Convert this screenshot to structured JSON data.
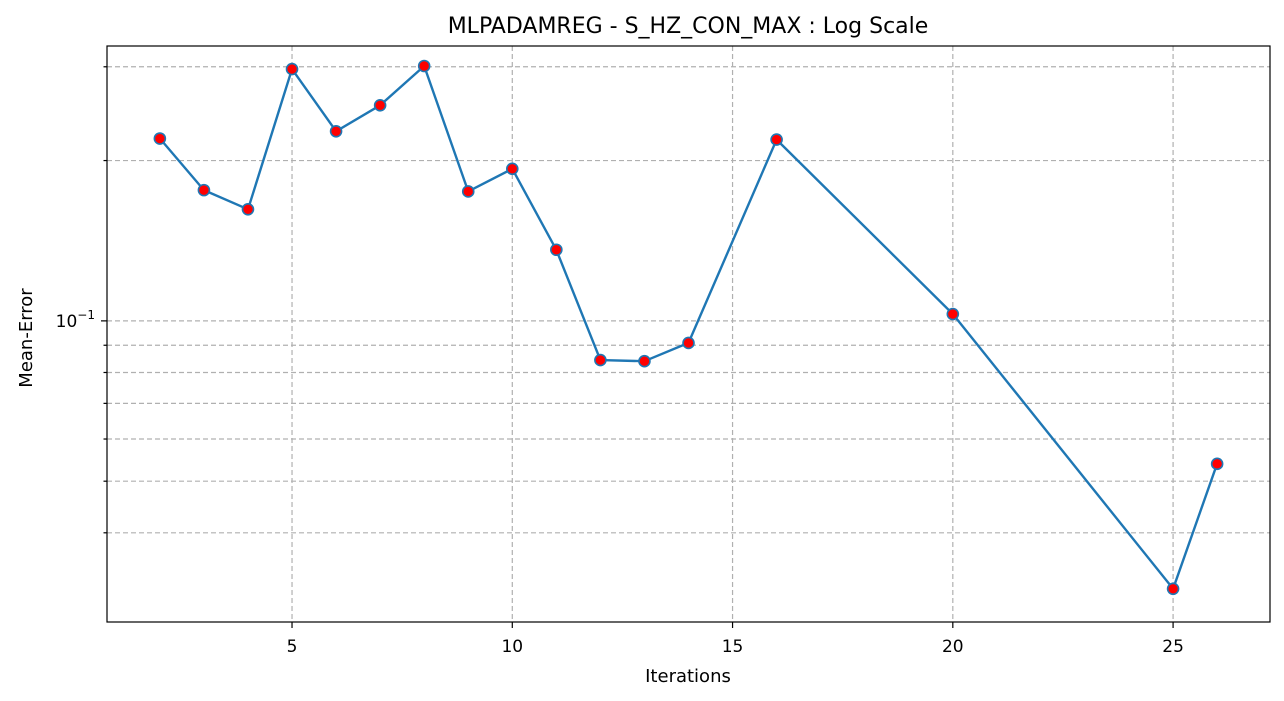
{
  "chart_data": {
    "type": "line",
    "title": "MLPADAMREG - S_HZ_CON_MAX : Log Scale",
    "xlabel": "Iterations",
    "ylabel": "Mean-Error",
    "yscale": "log",
    "grid": true,
    "xlim": [
      0.8,
      27.2
    ],
    "ylim": [
      0.0272,
      0.3282
    ],
    "x_ticks": [
      5,
      10,
      15,
      20,
      25
    ],
    "y_major_ticks": [
      {
        "value": 0.1,
        "base": "10",
        "exponent": "−1"
      }
    ],
    "y_minor_gridlines": [
      0.04,
      0.05,
      0.06,
      0.07,
      0.08,
      0.09,
      0.2,
      0.3
    ],
    "colors": {
      "line": "#1f77b4",
      "marker_face": "#ff0000",
      "marker_edge": "#1f77b4"
    },
    "series": [
      {
        "x": [
          2,
          3,
          4,
          5,
          6,
          7,
          8,
          9,
          10,
          11,
          12,
          13,
          14,
          16,
          20,
          25,
          26
        ],
        "values": [
          0.22,
          0.176,
          0.162,
          0.297,
          0.227,
          0.254,
          0.301,
          0.175,
          0.193,
          0.136,
          0.0844,
          0.084,
          0.0909,
          0.219,
          0.103,
          0.0314,
          0.0539
        ]
      }
    ]
  }
}
